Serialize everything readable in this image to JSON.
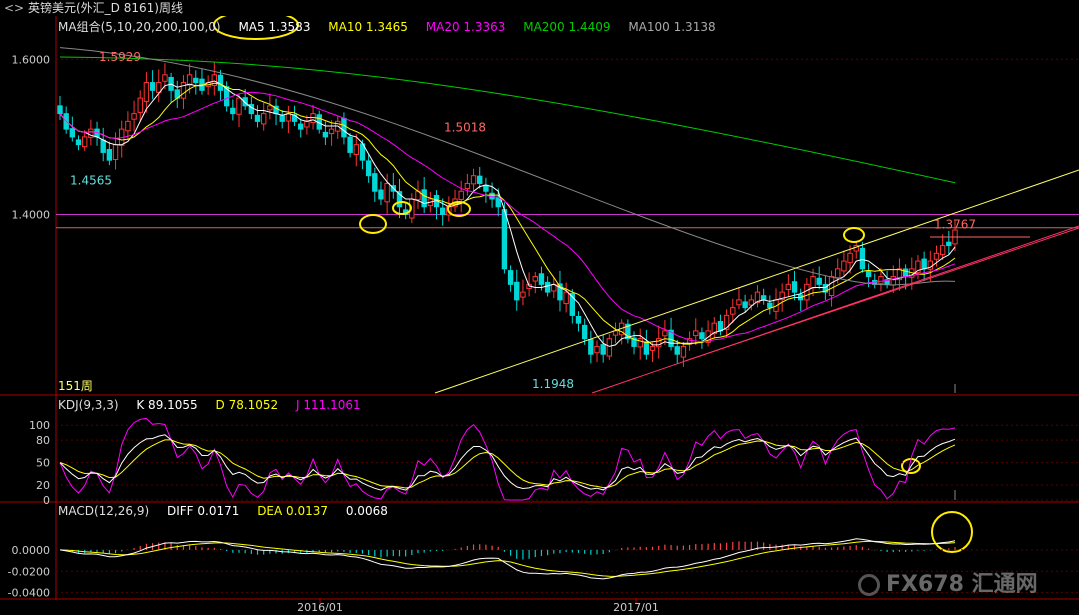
{
  "header": {
    "title": "英镑美元(外汇_D 8161)周线"
  },
  "legend_main": {
    "ma_group": "MA组合(5,10,20,200,100,0)",
    "ma5": "MA5 1.3583",
    "ma10": "MA10 1.3465",
    "ma20": "MA20 1.3363",
    "ma200": "MA200 1.4409",
    "ma100": "MA100 1.3138"
  },
  "legend_kdj": {
    "name": "KDJ(9,3,3)",
    "k": "K  89.1055",
    "d": "D  78.1052",
    "j": "J  111.1061"
  },
  "legend_macd": {
    "name": "MACD(12,26,9)",
    "diff": "DIFF  0.0171",
    "dea": "DEA  0.0137",
    "macd": "0.0068"
  },
  "watermark": {
    "text": "FX678 汇通网"
  },
  "colors": {
    "background": "#000000",
    "up": "#ff3333",
    "down": "#00d8d8",
    "ma5": "#ffffff",
    "ma10": "#ffff00",
    "ma20": "#ff00ff",
    "ma200": "#00cc00",
    "ma100": "#888888",
    "trend": "#ffff66",
    "highlight": "#ffee00",
    "grid": "#8b0000"
  },
  "chart_data": [
    {
      "type": "candlestick",
      "period": "weekly",
      "period_label": "151周",
      "ylim": [
        1.17,
        1.63
      ],
      "yticks": [
        1.6,
        1.4
      ],
      "ytick_labels": [
        "1.6000",
        "1.4000"
      ],
      "xtick_labels": [
        "2016/01",
        "2017/01"
      ],
      "annotations": [
        {
          "label": "1.5929",
          "value": 1.5929
        },
        {
          "label": "1.4565",
          "value": 1.4565
        },
        {
          "label": "1.5018",
          "value": 1.5018
        },
        {
          "label": "1.1948",
          "value": 1.1948
        },
        {
          "label": "1.3767",
          "value": 1.3767
        }
      ],
      "horizontal_lines": [
        1.4,
        1.383
      ],
      "series": [
        {
          "name": "MA5",
          "last": 1.3583
        },
        {
          "name": "MA10",
          "last": 1.3465
        },
        {
          "name": "MA20",
          "last": 1.3363
        },
        {
          "name": "MA200",
          "last": 1.4409
        },
        {
          "name": "MA100",
          "last": 1.3138
        }
      ],
      "closes": [
        1.53,
        1.51,
        1.5,
        1.49,
        1.5,
        1.51,
        1.5,
        1.48,
        1.47,
        1.49,
        1.51,
        1.52,
        1.53,
        1.55,
        1.57,
        1.56,
        1.57,
        1.58,
        1.56,
        1.55,
        1.57,
        1.58,
        1.57,
        1.56,
        1.57,
        1.58,
        1.56,
        1.54,
        1.53,
        1.55,
        1.54,
        1.53,
        1.52,
        1.53,
        1.54,
        1.53,
        1.52,
        1.53,
        1.52,
        1.51,
        1.52,
        1.53,
        1.51,
        1.5,
        1.51,
        1.52,
        1.5,
        1.48,
        1.49,
        1.47,
        1.45,
        1.43,
        1.42,
        1.44,
        1.43,
        1.41,
        1.4,
        1.42,
        1.43,
        1.41,
        1.42,
        1.41,
        1.4,
        1.41,
        1.42,
        1.43,
        1.44,
        1.45,
        1.44,
        1.43,
        1.42,
        1.41,
        1.33,
        1.31,
        1.29,
        1.3,
        1.31,
        1.32,
        1.31,
        1.3,
        1.31,
        1.29,
        1.3,
        1.27,
        1.26,
        1.24,
        1.22,
        1.23,
        1.22,
        1.24,
        1.25,
        1.26,
        1.24,
        1.23,
        1.24,
        1.22,
        1.23,
        1.24,
        1.25,
        1.23,
        1.22,
        1.23,
        1.24,
        1.25,
        1.24,
        1.25,
        1.26,
        1.25,
        1.27,
        1.28,
        1.29,
        1.28,
        1.29,
        1.3,
        1.29,
        1.28,
        1.29,
        1.3,
        1.31,
        1.3,
        1.29,
        1.31,
        1.32,
        1.31,
        1.3,
        1.32,
        1.33,
        1.34,
        1.35,
        1.36,
        1.33,
        1.32,
        1.31,
        1.32,
        1.31,
        1.32,
        1.33,
        1.32,
        1.33,
        1.34,
        1.33,
        1.34,
        1.35,
        1.36,
        1.36,
        1.38
      ]
    },
    {
      "type": "line",
      "name": "KDJ(9,3,3)",
      "ylim": [
        0,
        115
      ],
      "ytick_labels": [
        "100",
        "80",
        "50",
        "20",
        "0"
      ],
      "yticks": [
        100,
        80,
        50,
        20,
        0
      ],
      "series": [
        {
          "name": "K",
          "last": 89.1055
        },
        {
          "name": "D",
          "last": 78.1052
        },
        {
          "name": "J",
          "last": 111.1061
        }
      ]
    },
    {
      "type": "bar",
      "name": "MACD(12,26,9)",
      "ylim": [
        -0.045,
        0.028
      ],
      "yticks": [
        0.0,
        -0.02,
        -0.04
      ],
      "ytick_labels": [
        "0.0000",
        "-0.0200",
        "-0.0400"
      ],
      "series": [
        {
          "name": "DIFF",
          "last": 0.0171
        },
        {
          "name": "DEA",
          "last": 0.0137
        },
        {
          "name": "MACD",
          "last": 0.0068
        }
      ]
    }
  ]
}
